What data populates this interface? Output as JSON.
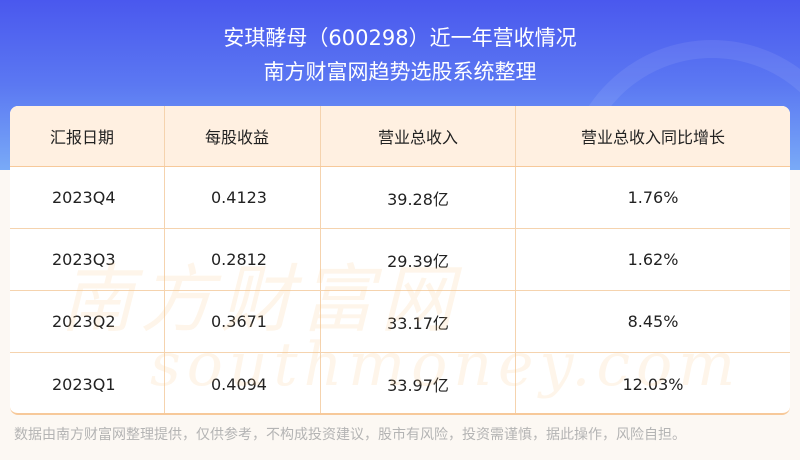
{
  "header": {
    "title": "安琪酵母（600298）近一年营收情况",
    "subtitle": "南方财富网趋势选股系统整理"
  },
  "table": {
    "columns": [
      "汇报日期",
      "每股收益",
      "营业总收入",
      "营业总收入同比增长"
    ],
    "rows": [
      [
        "2023Q4",
        "0.4123",
        "39.28亿",
        "1.76%"
      ],
      [
        "2023Q3",
        "0.2812",
        "29.39亿",
        "1.62%"
      ],
      [
        "2023Q2",
        "0.3671",
        "33.17亿",
        "8.45%"
      ],
      [
        "2023Q1",
        "0.4094",
        "33.97亿",
        "12.03%"
      ]
    ]
  },
  "watermark": {
    "cn": "南方财富网",
    "en": "southmoney.com"
  },
  "footer": "数据由南方财富网整理提供，仅供参考，不构成投资建议，股市有风险，投资需谨慎，据此操作，风险自担。",
  "colors": {
    "banner": "#4a58ee",
    "header_row": "#fff0e1",
    "border": "#f5d3ae"
  }
}
